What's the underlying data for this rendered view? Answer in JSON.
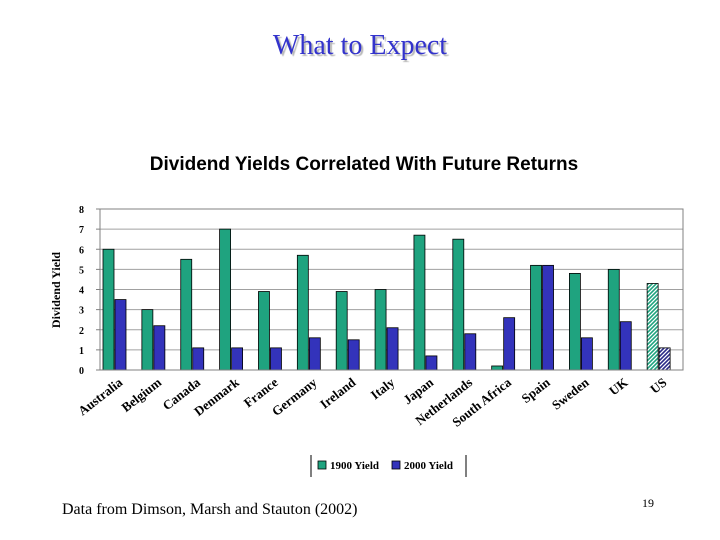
{
  "slide": {
    "title": "What to Expect",
    "source_note": "Data from Dimson, Marsh and Stauton (2002)",
    "page_number": "19"
  },
  "chart_data": {
    "type": "bar",
    "title": "Dividend Yields Correlated With Future Returns",
    "xlabel": "",
    "ylabel": "Dividend Yield",
    "ylim": [
      0,
      8
    ],
    "yticks": [
      0,
      1,
      2,
      3,
      4,
      5,
      6,
      7,
      8
    ],
    "grid": true,
    "legend_position": "bottom",
    "categories": [
      "Australia",
      "Belgium",
      "Canada",
      "Denmark",
      "France",
      "Germany",
      "Ireland",
      "Italy",
      "Japan",
      "Netherlands",
      "South Africa",
      "Spain",
      "Sweden",
      "UK",
      "US"
    ],
    "series": [
      {
        "name": "1900 Yield",
        "color": "#1fa37f",
        "values": [
          6.0,
          3.0,
          5.5,
          7.0,
          3.9,
          5.7,
          3.9,
          4.0,
          6.7,
          6.5,
          0.2,
          5.2,
          4.8,
          5.0,
          4.3
        ]
      },
      {
        "name": "2000 Yield",
        "color": "#3333bb",
        "values": [
          3.5,
          2.2,
          1.1,
          1.1,
          1.1,
          1.6,
          1.5,
          2.1,
          0.7,
          1.8,
          2.6,
          5.2,
          1.6,
          2.4,
          1.1
        ]
      }
    ],
    "highlight": {
      "category": "US",
      "style": "hatched"
    }
  }
}
